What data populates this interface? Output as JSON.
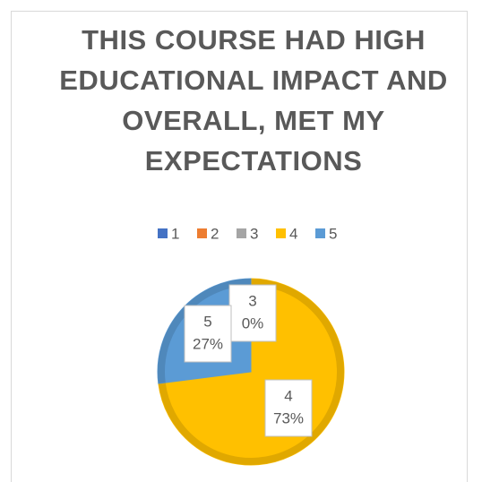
{
  "chart_data": {
    "type": "pie",
    "title": "THIS COURSE HAD HIGH EDUCATIONAL IMPACT AND OVERALL, MET MY EXPECTATIONS",
    "categories": [
      "1",
      "2",
      "3",
      "4",
      "5"
    ],
    "values": [
      0,
      0,
      0,
      73,
      27
    ],
    "value_labels": [
      null,
      null,
      "0%",
      "73%",
      "27%"
    ],
    "colors": [
      "#4472c4",
      "#ed7d31",
      "#a5a5a5",
      "#ffc000",
      "#5b9bd5"
    ],
    "legend": "top"
  }
}
